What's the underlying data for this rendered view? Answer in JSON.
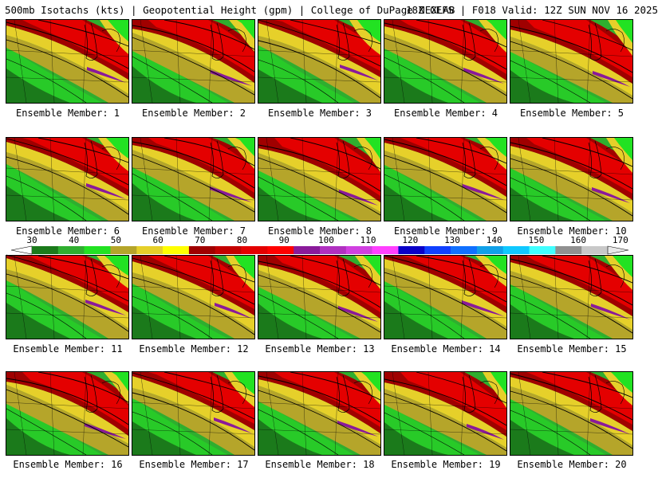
{
  "header": {
    "title_left": "500mb Isotachs (kts) | Geopotential Height (gpm) | College of DuPage NEXLAB",
    "title_right": "18Z GEFS | F018 Valid: 12Z SUN NOV 16 2025"
  },
  "member_label_prefix": "Ensemble Member:",
  "members": [
    {
      "label": "Ensemble Member: 1",
      "number": 1
    },
    {
      "label": "Ensemble Member: 2",
      "number": 2
    },
    {
      "label": "Ensemble Member: 3",
      "number": 3
    },
    {
      "label": "Ensemble Member: 4",
      "number": 4
    },
    {
      "label": "Ensemble Member: 5",
      "number": 5
    },
    {
      "label": "Ensemble Member: 6",
      "number": 6
    },
    {
      "label": "Ensemble Member: 7",
      "number": 7
    },
    {
      "label": "Ensemble Member: 8",
      "number": 8
    },
    {
      "label": "Ensemble Member: 9",
      "number": 9
    },
    {
      "label": "Ensemble Member: 10",
      "number": 10
    },
    {
      "label": "Ensemble Member: 11",
      "number": 11
    },
    {
      "label": "Ensemble Member: 12",
      "number": 12
    },
    {
      "label": "Ensemble Member: 13",
      "number": 13
    },
    {
      "label": "Ensemble Member: 14",
      "number": 14
    },
    {
      "label": "Ensemble Member: 15",
      "number": 15
    },
    {
      "label": "Ensemble Member: 16",
      "number": 16
    },
    {
      "label": "Ensemble Member: 17",
      "number": 17
    },
    {
      "label": "Ensemble Member: 18",
      "number": 18
    },
    {
      "label": "Ensemble Member: 19",
      "number": 19
    },
    {
      "label": "Ensemble Member: 20",
      "number": 20
    }
  ],
  "colorbar": {
    "tick_labels": [
      "30",
      "40",
      "50",
      "60",
      "70",
      "80",
      "90",
      "100",
      "110",
      "120",
      "130",
      "140",
      "150",
      "160",
      "170"
    ],
    "colors": [
      "#1b7a1b",
      "#2fae2f",
      "#22e222",
      "#b5a52a",
      "#e6d02a",
      "#ffff00",
      "#a00000",
      "#c40000",
      "#e40000",
      "#ff0000",
      "#8a1a9a",
      "#b030c0",
      "#d040e0",
      "#ff40ff",
      "#0a00c8",
      "#1040ff",
      "#1070ff",
      "#10a0e8",
      "#10c8ff",
      "#40ffff",
      "#909090",
      "#c8c8c8"
    ]
  },
  "map_colors": {
    "green_dark": "#1b7a1b",
    "green": "#2fae2f",
    "green_light": "#22e222",
    "olive": "#b5a52a",
    "yellow": "#e6d02a",
    "yellow_bright": "#ffff00",
    "red_dark": "#a00000",
    "red": "#c40000",
    "red_bright": "#e40000",
    "purple": "#8a1a9a"
  }
}
